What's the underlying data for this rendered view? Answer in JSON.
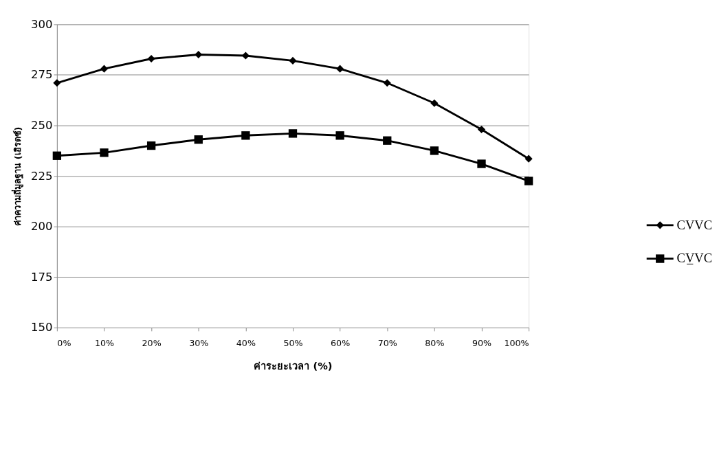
{
  "chart_data": {
    "type": "line",
    "xlabel": "ค่าระยะเวลา (%)",
    "ylabel": "ค่าความถี่มูลฐาน (เฮิรตซ์)",
    "categories": [
      "0%",
      "10%",
      "20%",
      "30%",
      "40%",
      "50%",
      "60%",
      "70%",
      "80%",
      "90%",
      "100%"
    ],
    "series": [
      {
        "name": "CVVC",
        "color": "#000000",
        "marker": "diamond",
        "values": [
          271,
          278,
          283,
          285,
          284.5,
          282,
          278,
          271,
          261,
          248,
          233.5
        ]
      },
      {
        "name": "CV̲VC",
        "color": "#000000",
        "marker": "square",
        "values": [
          235,
          236.5,
          240,
          243,
          245,
          246,
          245,
          242.5,
          237.5,
          231,
          222.5
        ]
      }
    ],
    "ylim": [
      150,
      300
    ],
    "yticks": [
      150,
      175,
      200,
      225,
      250,
      275,
      300
    ],
    "grid": "y",
    "legend": "right",
    "line_style": "solid"
  }
}
